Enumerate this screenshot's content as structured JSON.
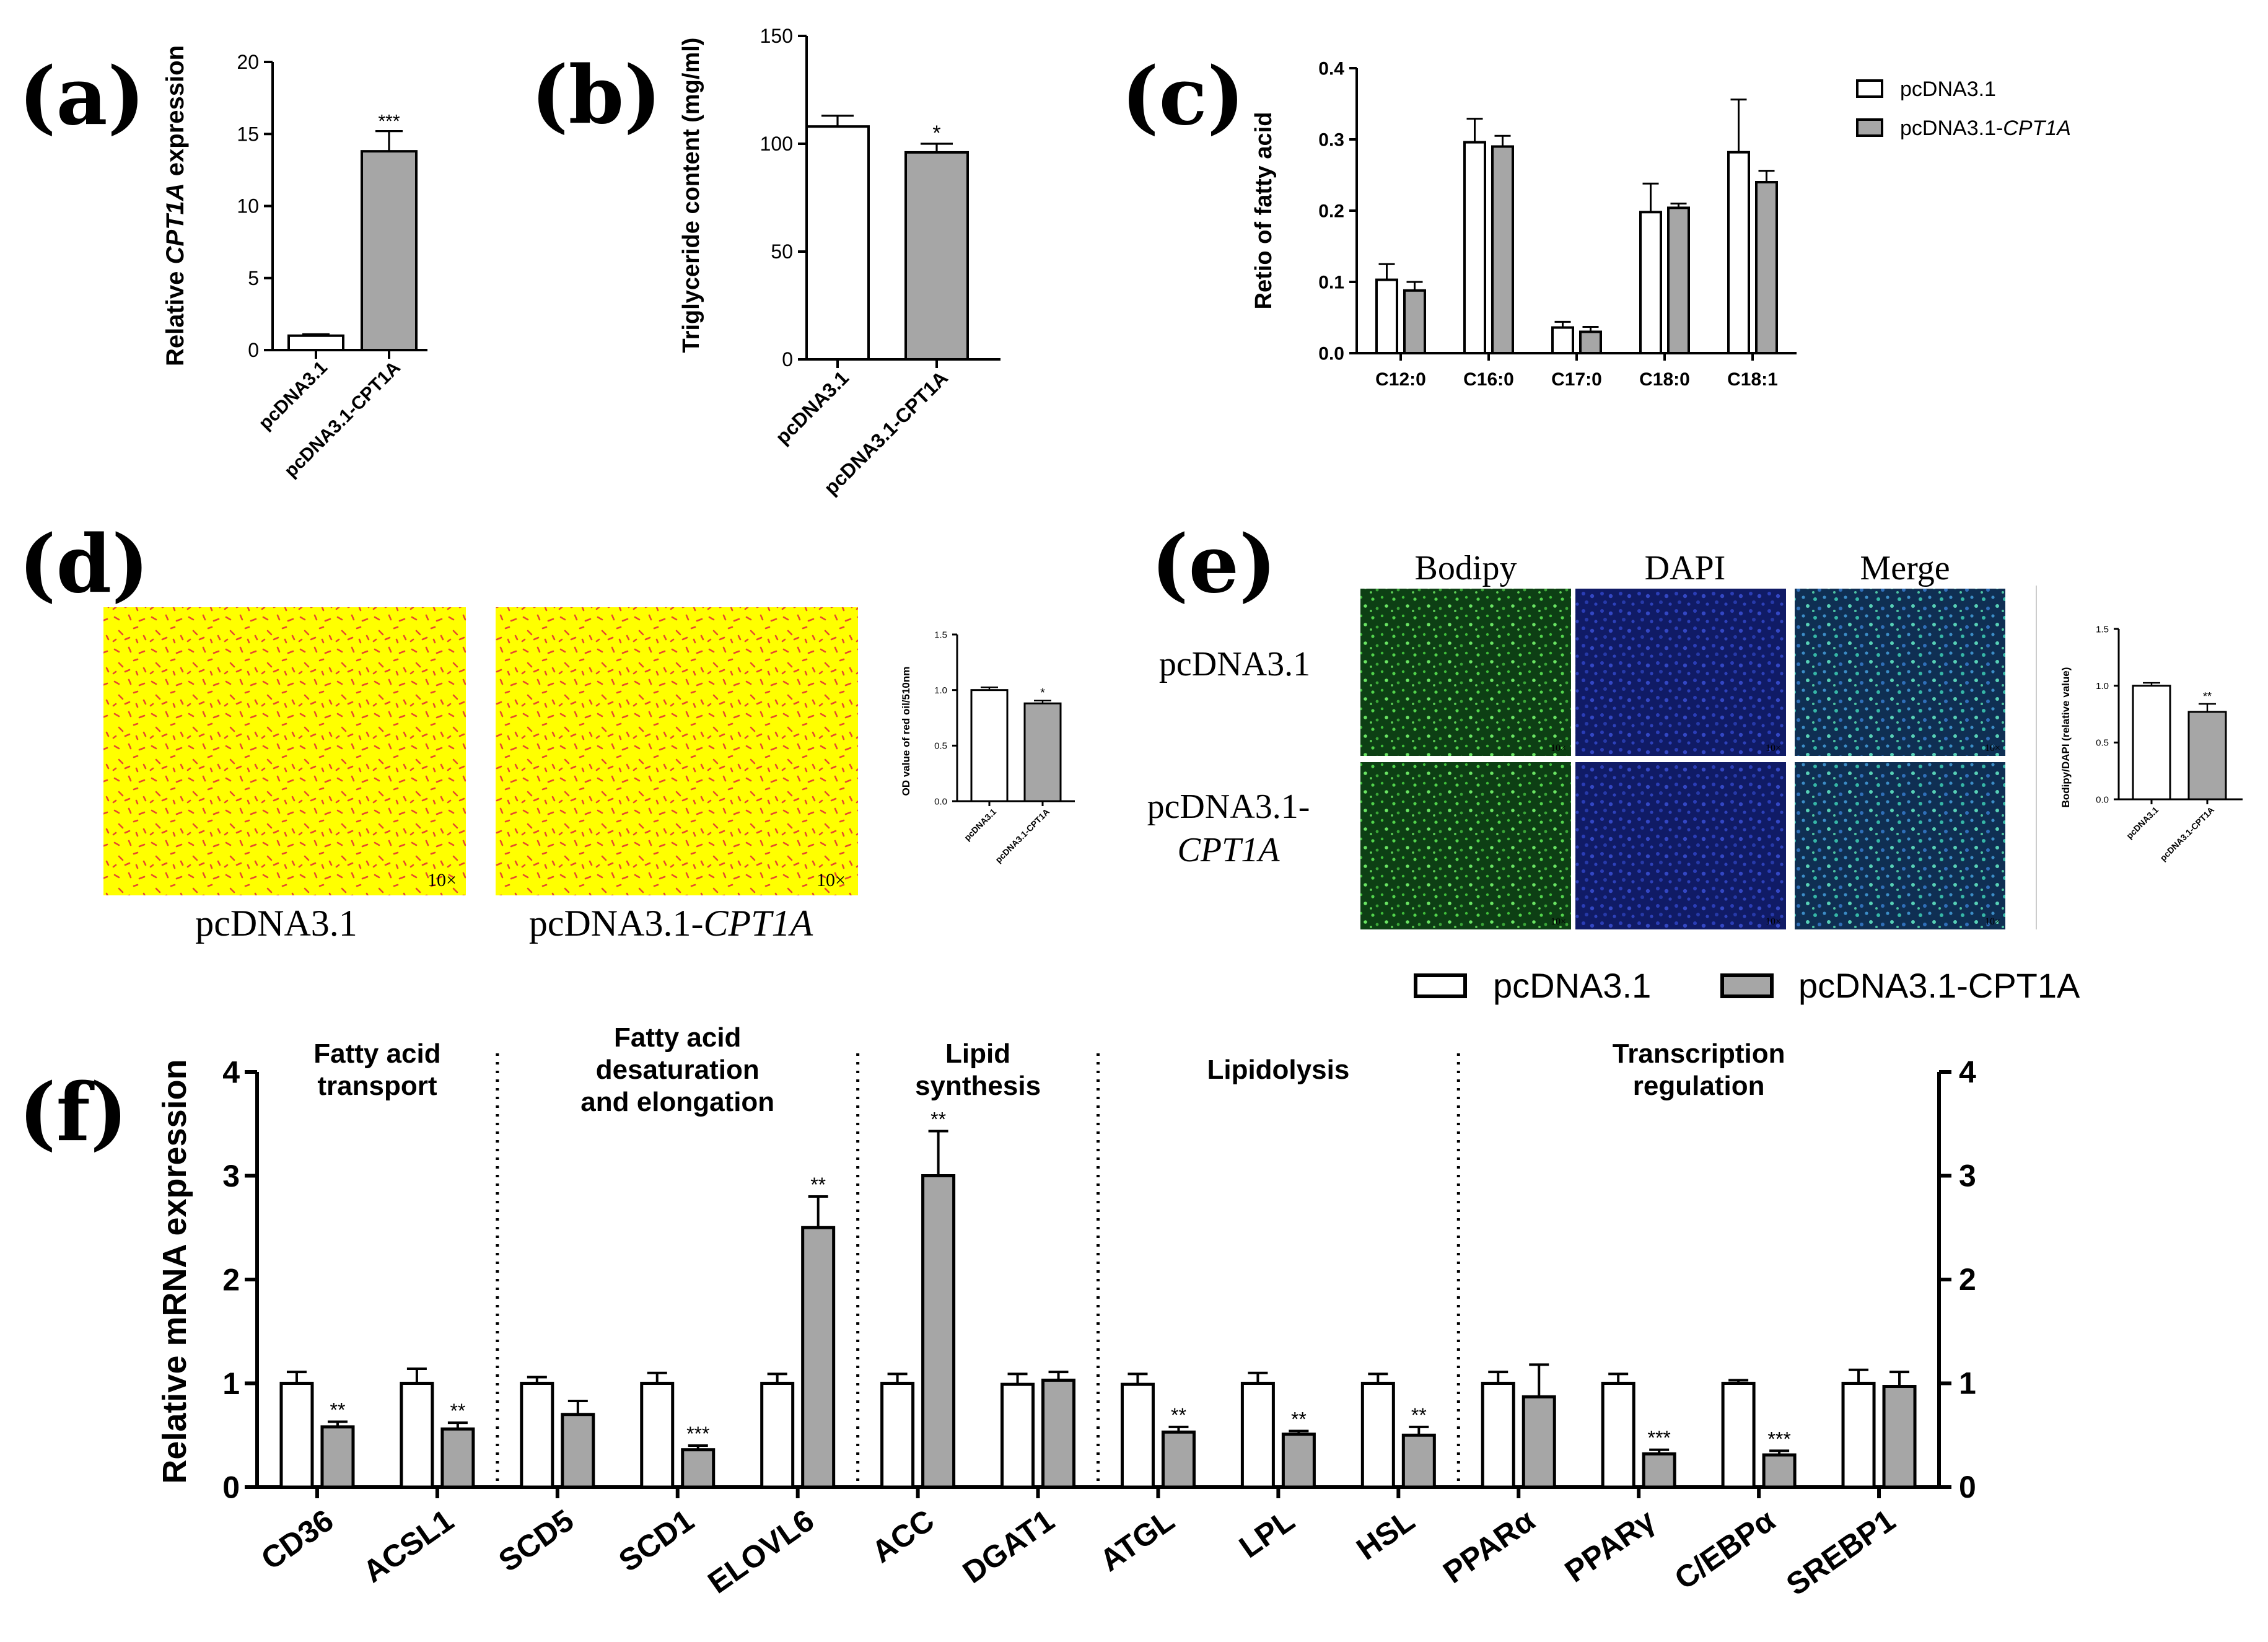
{
  "colors": {
    "control": "#ffffff",
    "treated": "#a6a6a6",
    "axis": "#000000",
    "stain_bg": "#ffff00",
    "stain_dot": "#e64a2e",
    "bodipy": "#2fae2f",
    "dapi": "#1a2f9c"
  },
  "panels": {
    "a": {
      "label": "(a)"
    },
    "b": {
      "label": "(b)"
    },
    "c": {
      "label": "(c)"
    },
    "d": {
      "label": "(d)",
      "image_labels": [
        "pcDNA3.1",
        "pcDNA3.1-"
      ],
      "image_label_italic": "CPT1A",
      "magnification": "10×"
    },
    "e": {
      "label": "(e)",
      "col_labels": [
        "Bodipy",
        "DAPI",
        "Merge"
      ],
      "row1": "pcDNA3.1",
      "row2_line1": "pcDNA3.1-",
      "row2_line2": "CPT1A",
      "magnification": "10×"
    },
    "f": {
      "label": "(f)"
    }
  },
  "legend_c": {
    "items": [
      "pcDNA3.1",
      "pcDNA3.1-"
    ],
    "italic": "CPT1A"
  },
  "legend_f": {
    "items": [
      "pcDNA3.1",
      "pcDNA3.1-CPT1A"
    ]
  },
  "chart_data": [
    {
      "id": "a",
      "type": "bar",
      "ylabel": "Relative CPT1A expression",
      "ylabel_parts": [
        "Relative ",
        "CPT1A",
        "  expression"
      ],
      "ylim": [
        0,
        20
      ],
      "yticks": [
        0,
        5,
        10,
        15,
        20
      ],
      "categories": [
        "pcDNA3.1",
        "pcDNA3.1-CPT1A"
      ],
      "values": [
        1.0,
        13.8
      ],
      "errors": [
        0.1,
        1.4
      ],
      "significance": [
        "",
        "***"
      ]
    },
    {
      "id": "b",
      "type": "bar",
      "ylabel": "Triglyceride content (mg/ml)",
      "ylim": [
        0,
        150
      ],
      "yticks": [
        0,
        50,
        100,
        150
      ],
      "categories": [
        "pcDNA3.1",
        "pcDNA3.1-CPT1A"
      ],
      "values": [
        108,
        96
      ],
      "errors": [
        5,
        4
      ],
      "significance": [
        "",
        "*"
      ]
    },
    {
      "id": "c",
      "type": "bar",
      "ylabel": "Retio of fatty acid",
      "ylim": [
        0,
        0.4
      ],
      "yticks": [
        "0.0",
        "0.1",
        "0.2",
        "0.3",
        "0.4"
      ],
      "categories": [
        "C12:0",
        "C16:0",
        "C17:0",
        "C18:0",
        "C18:1"
      ],
      "series": [
        {
          "name": "pcDNA3.1",
          "values": [
            0.103,
            0.296,
            0.036,
            0.198,
            0.282
          ],
          "errors": [
            0.022,
            0.033,
            0.008,
            0.04,
            0.074
          ]
        },
        {
          "name": "pcDNA3.1-CPT1A",
          "values": [
            0.088,
            0.29,
            0.03,
            0.204,
            0.24
          ],
          "errors": [
            0.012,
            0.015,
            0.007,
            0.006,
            0.016
          ]
        }
      ]
    },
    {
      "id": "d",
      "type": "bar",
      "ylabel": "OD value of red oil/510nm",
      "ylim": [
        0,
        1.5
      ],
      "yticks": [
        "0.0",
        "0.5",
        "1.0",
        "1.5"
      ],
      "categories": [
        "pcDNA3.1",
        "pcDNA3.1-CPT1A"
      ],
      "values": [
        1.0,
        0.88
      ],
      "errors": [
        0.025,
        0.025
      ],
      "significance": [
        "",
        "*"
      ]
    },
    {
      "id": "e",
      "type": "bar",
      "ylabel": "Bodipy/DAPI (relative value)",
      "ylim": [
        0,
        1.5
      ],
      "yticks": [
        "0.0",
        "0.5",
        "1.0",
        "1.5"
      ],
      "categories": [
        "pcDNA3.1",
        "pcDNA3.1-CPT1A"
      ],
      "values": [
        1.0,
        0.77
      ],
      "errors": [
        0.025,
        0.07
      ],
      "significance": [
        "",
        "**"
      ]
    },
    {
      "id": "f",
      "type": "bar",
      "ylabel": "Relative mRNA expression",
      "ylim": [
        0,
        4
      ],
      "yticks": [
        "0",
        "1",
        "2",
        "3",
        "4"
      ],
      "categories": [
        "CD36",
        "ACSL1",
        "SCD5",
        "SCD1",
        "ELOVL6",
        "ACC",
        "DGAT1",
        "ATGL",
        "LPL",
        "HSL",
        "PPARα",
        "PPARγ",
        "C/EBPα",
        "SREBP1"
      ],
      "groups": [
        {
          "title": [
            "Fatty acid",
            "transport"
          ],
          "count": 2
        },
        {
          "title": [
            "Fatty acid",
            "desaturation",
            "and elongation"
          ],
          "count": 3
        },
        {
          "title": [
            "Lipid",
            "synthesis"
          ],
          "count": 2
        },
        {
          "title": [
            "Lipidolysis"
          ],
          "count": 3
        },
        {
          "title": [
            "Transcription",
            "regulation"
          ],
          "count": 4
        }
      ],
      "series": [
        {
          "name": "pcDNA3.1",
          "values": [
            1.0,
            1.0,
            1.0,
            1.0,
            1.0,
            1.0,
            0.99,
            0.99,
            1.0,
            1.0,
            1.0,
            1.0,
            1.0,
            1.0
          ],
          "errors": [
            0.11,
            0.14,
            0.06,
            0.1,
            0.09,
            0.09,
            0.1,
            0.1,
            0.1,
            0.09,
            0.11,
            0.09,
            0.03,
            0.13
          ]
        },
        {
          "name": "pcDNA3.1-CPT1A",
          "values": [
            0.58,
            0.56,
            0.7,
            0.36,
            2.5,
            3.0,
            1.03,
            0.53,
            0.51,
            0.5,
            0.87,
            0.32,
            0.31,
            0.97
          ],
          "errors": [
            0.05,
            0.06,
            0.13,
            0.04,
            0.3,
            0.43,
            0.08,
            0.05,
            0.03,
            0.08,
            0.31,
            0.04,
            0.04,
            0.14
          ]
        }
      ],
      "significance": [
        "**",
        "**",
        "",
        "***",
        "**",
        "**",
        "",
        "**",
        "**",
        "**",
        "",
        "***",
        "***",
        ""
      ]
    }
  ]
}
